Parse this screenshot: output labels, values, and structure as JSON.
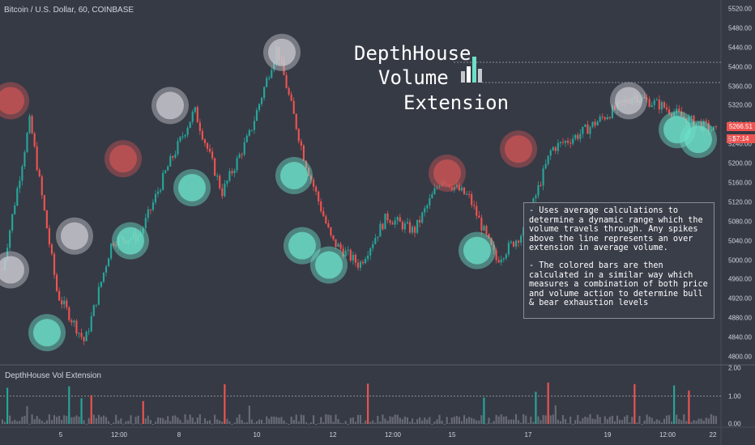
{
  "header": {
    "symbol_line": "Bitcoin / U.S. Dollar, 60, COINBASE"
  },
  "logo": {
    "line1": "DepthHouse",
    "line2": "Volume",
    "line3": "Extension"
  },
  "description": {
    "para1": "- Uses average calculations to determine a dynamic range which the volume travels through. Any spikes above the line represents an over extension in average volume.",
    "para2": "- The colored bars are then calculated in a similar way which measures a combination of both price and volume action to determine bull & bear exhaustion levels"
  },
  "price_axis": {
    "labels": [
      "5520.00",
      "5480.00",
      "5440.00",
      "5400.00",
      "5360.00",
      "5320.00",
      "5280.00",
      "5240.00",
      "5200.00",
      "5160.00",
      "5120.00",
      "5080.00",
      "5040.00",
      "5000.00",
      "4960.00",
      "4920.00",
      "4880.00",
      "4840.00",
      "4800.00"
    ],
    "last_price": "5266.51",
    "countdown": "57:14",
    "partial_label": "52"
  },
  "time_axis": {
    "labels": [
      "5",
      "12:00",
      "8",
      "10",
      "12",
      "12:00",
      "15",
      "17",
      "19",
      "12:00",
      "22"
    ]
  },
  "indicator": {
    "title": "DepthHouse Vol Extension",
    "axis_labels": [
      "2.00",
      "1.00",
      "0.00"
    ]
  },
  "colors": {
    "background": "#363a45",
    "bull": "#26a69a",
    "bear": "#ef5350",
    "bull_marker": "#6ce0c8",
    "bear_marker": "#c95454",
    "neutral_marker": "#c8c9cf",
    "neutral_bar": "#6e717b"
  },
  "chart_data": {
    "type": "candlestick",
    "price_range": [
      4790,
      5530
    ],
    "approx_close_path": [
      {
        "x": "4",
        "close": 4980
      },
      {
        "x": "4",
        "close": 5290
      },
      {
        "x": "4",
        "close": 4930
      },
      {
        "x": "5",
        "close": 4830
      },
      {
        "x": "5",
        "close": 5040
      },
      {
        "x": "12:00",
        "close": 5050
      },
      {
        "x": "12:00",
        "close": 5190
      },
      {
        "x": "8",
        "close": 5310
      },
      {
        "x": "8",
        "close": 5140
      },
      {
        "x": "10",
        "close": 5260
      },
      {
        "x": "10",
        "close": 5440
      },
      {
        "x": "10",
        "close": 5210
      },
      {
        "x": "12",
        "close": 5040
      },
      {
        "x": "12",
        "close": 4990
      },
      {
        "x": "12:00",
        "close": 5090
      },
      {
        "x": "12:00",
        "close": 5060
      },
      {
        "x": "15",
        "close": 5170
      },
      {
        "x": "15",
        "close": 5130
      },
      {
        "x": "15",
        "close": 5000
      },
      {
        "x": "17",
        "close": 5060
      },
      {
        "x": "17",
        "close": 5230
      },
      {
        "x": "17",
        "close": 5260
      },
      {
        "x": "19",
        "close": 5300
      },
      {
        "x": "19",
        "close": 5340
      },
      {
        "x": "12:00",
        "close": 5320
      },
      {
        "x": "22",
        "close": 5290
      },
      {
        "x": "22",
        "close": 5266.51
      }
    ],
    "markers": [
      {
        "type": "bear",
        "price": 5330
      },
      {
        "type": "neutral",
        "price": 4980
      },
      {
        "type": "bull",
        "price": 4850
      },
      {
        "type": "neutral",
        "price": 5050
      },
      {
        "type": "bull",
        "price": 5040
      },
      {
        "type": "bear",
        "price": 5210
      },
      {
        "type": "neutral",
        "price": 5320
      },
      {
        "type": "bull",
        "price": 5150
      },
      {
        "type": "neutral",
        "price": 5430
      },
      {
        "type": "bull",
        "price": 5175
      },
      {
        "type": "bull",
        "price": 5030
      },
      {
        "type": "bull",
        "price": 4990
      },
      {
        "type": "bear",
        "price": 5180
      },
      {
        "type": "bull",
        "price": 5020
      },
      {
        "type": "bear",
        "price": 5230
      },
      {
        "type": "neutral",
        "price": 5330
      },
      {
        "type": "bull",
        "price": 5270
      },
      {
        "type": "bull",
        "price": 5250
      }
    ],
    "indicator_range": [
      0,
      2
    ],
    "indicator_threshold": 1.0
  }
}
